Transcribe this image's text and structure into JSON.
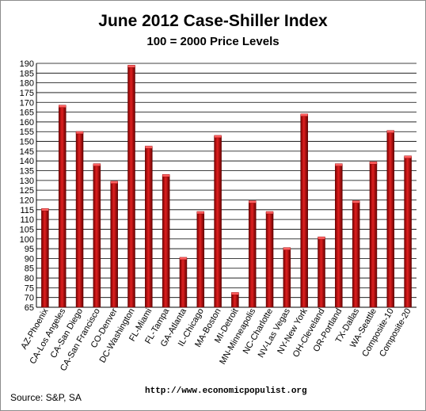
{
  "chart_data": {
    "type": "bar",
    "title": "June 2012 Case-Shiller Index",
    "subtitle": "100 = 2000 Price Levels",
    "xlabel": "",
    "ylabel": "",
    "ylim": [
      65,
      190
    ],
    "yticks": [
      65,
      70,
      75,
      80,
      85,
      90,
      95,
      100,
      105,
      110,
      115,
      120,
      125,
      130,
      135,
      140,
      145,
      150,
      155,
      160,
      165,
      170,
      175,
      180,
      185,
      190
    ],
    "grid": true,
    "bar_color": "#c00000",
    "categories": [
      "AZ-Phoenix",
      "CA-Los Angeles",
      "CA-San Diego",
      "CA-San Francisco",
      "CO-Denver",
      "DC-Washington",
      "FL-Miami",
      "FL-Tampa",
      "GA-Atlanta",
      "IL-Chicago",
      "MA-Boston",
      "MI-Detroit",
      "MN-Minneapolis",
      "NC-Charlotte",
      "NV-Las Vegas",
      "NY-New York",
      "OH-Cleveland",
      "OR-Portland",
      "TX-Dallas",
      "WA-Seattle",
      "Composite-10",
      "Composite-20"
    ],
    "values": [
      115,
      168,
      154.5,
      138,
      129,
      188.5,
      147,
      132.5,
      90,
      113.5,
      152.5,
      72,
      119,
      113.5,
      95,
      163.5,
      100.5,
      138,
      119,
      139,
      155,
      142
    ]
  },
  "footer": {
    "source": "Source:  S&P, SA",
    "url": "http://www.economicpopulist.org"
  }
}
